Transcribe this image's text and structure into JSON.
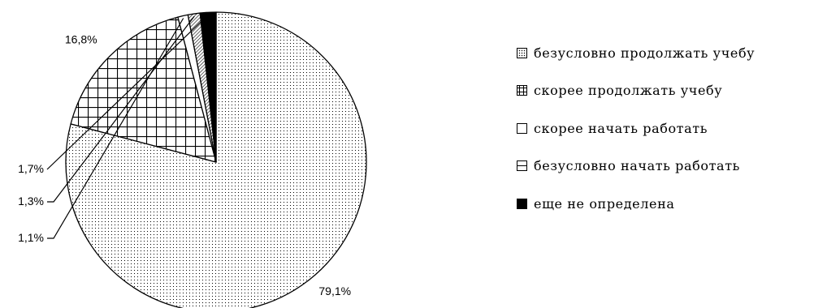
{
  "chart_data": {
    "type": "pie",
    "title": "",
    "categories": [
      "безусловно продолжать учебу",
      "скорее продолжать учебу",
      "скорее начать работать",
      "безусловно начать работать",
      "еще не определена"
    ],
    "values": [
      79.1,
      16.8,
      1.1,
      1.3,
      1.7
    ],
    "data_labels": [
      "79,1%",
      "16,8%",
      "1,1%",
      "1,3%",
      "1,7%"
    ],
    "fill_patterns": [
      "dots",
      "grid",
      "blank",
      "diagonal-hatch",
      "solid"
    ],
    "legend_position": "right",
    "start_angle_deg": 90,
    "direction": "clockwise"
  },
  "legend": {
    "items": [
      {
        "label": "безусловно продолжать учебу",
        "swatch": "sw-dots"
      },
      {
        "label": "скорее продолжать учебу",
        "swatch": "sw-grid"
      },
      {
        "label": "скорее начать работать",
        "swatch": "sw-blank"
      },
      {
        "label": "безусловно начать работать",
        "swatch": "sw-hatch"
      },
      {
        "label": "еще не определена",
        "swatch": "sw-solid"
      }
    ]
  },
  "colors": {
    "ink": "#000000",
    "background": "#ffffff"
  }
}
